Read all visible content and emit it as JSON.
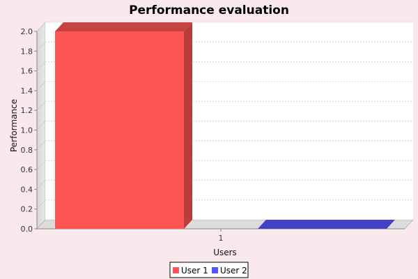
{
  "chart_data": {
    "type": "bar",
    "title": "Performance evaluation",
    "xlabel": "Users",
    "ylabel": "Performance",
    "categories": [
      "1"
    ],
    "series": [
      {
        "name": "User 1",
        "values": [
          2.0
        ],
        "color": "#ff5555"
      },
      {
        "name": "User 2",
        "values": [
          0.0
        ],
        "color": "#5555ff"
      }
    ],
    "ylim": [
      0,
      2.0
    ],
    "yticks": [
      0.0,
      0.2,
      0.4,
      0.6,
      0.8,
      1.0,
      1.2,
      1.4,
      1.6,
      1.8,
      2.0
    ],
    "ytick_labels": [
      "0.0",
      "0.2",
      "0.4",
      "0.6",
      "0.8",
      "1.0",
      "1.2",
      "1.4",
      "1.6",
      "1.8",
      "2.0"
    ],
    "grid": true,
    "legend_position": "bottom-center"
  }
}
